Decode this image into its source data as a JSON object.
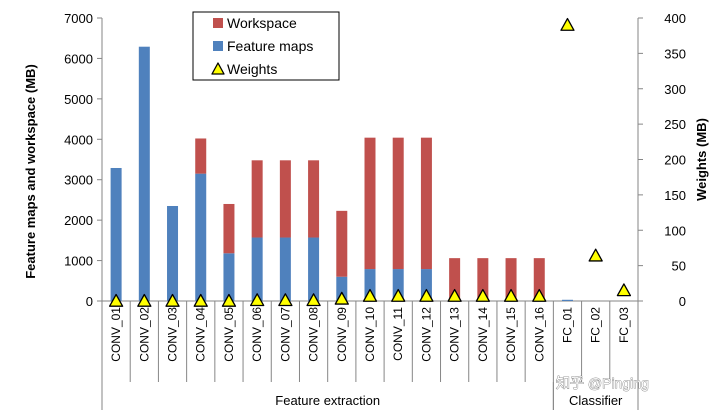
{
  "chart_data": {
    "type": "bar",
    "stacked": true,
    "categories": [
      "CONV_01",
      "CONV_02",
      "CONV_03",
      "CONV_04",
      "CONV_05",
      "CONV_06",
      "CONV_07",
      "CONV_08",
      "CONV_09",
      "CONV_10",
      "CONV_11",
      "CONV_12",
      "CONV_13",
      "CONV_14",
      "CONV_15",
      "CONV_16",
      "FC_01",
      "FC_02",
      "FC_03"
    ],
    "series": [
      {
        "name": "Feature maps",
        "axis": "left",
        "color": "#4f81bd",
        "values": [
          3290,
          6290,
          2350,
          3150,
          1180,
          1570,
          1570,
          1570,
          600,
          790,
          790,
          790,
          0,
          0,
          0,
          0,
          30,
          0,
          0
        ]
      },
      {
        "name": "Workspace",
        "axis": "left",
        "color": "#c0504d",
        "values": [
          0,
          0,
          0,
          870,
          1220,
          1910,
          1910,
          1910,
          1630,
          3250,
          3250,
          3250,
          1060,
          1060,
          1060,
          1060,
          0,
          0,
          0
        ]
      },
      {
        "name": "Weights",
        "axis": "right",
        "type": "scatter",
        "marker": "triangle",
        "color": "#ffff00",
        "values": [
          0,
          0,
          0,
          0,
          0,
          1,
          1,
          1,
          3,
          7,
          7,
          7,
          7,
          7,
          7,
          7,
          390,
          64,
          15
        ]
      }
    ],
    "groups": [
      {
        "label": "Feature extraction",
        "from": 0,
        "to": 15
      },
      {
        "label": "Classifier",
        "from": 16,
        "to": 18
      }
    ],
    "ylabel": "Feature maps and workspace (MB)",
    "ylim": [
      0,
      7000
    ],
    "yticks": [
      0,
      1000,
      2000,
      3000,
      4000,
      5000,
      6000,
      7000
    ],
    "y2label": "Weights (MB)",
    "y2lim": [
      0,
      400
    ],
    "y2ticks": [
      0,
      50,
      100,
      150,
      200,
      250,
      300,
      350,
      400
    ],
    "legend": {
      "position": "top-left",
      "entries": [
        "Workspace",
        "Feature maps",
        "Weights"
      ]
    },
    "grid": false
  },
  "watermark": {
    "text": "知乎 @Pinging"
  }
}
